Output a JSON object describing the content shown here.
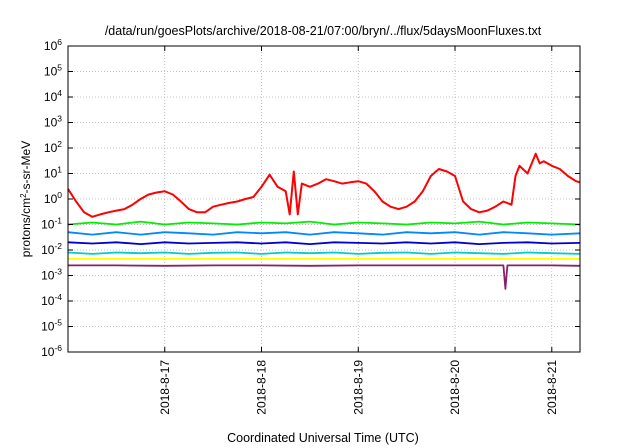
{
  "chart_data": {
    "type": "line",
    "title": "/data/run/goesPlots/archive/2018-08-21/07:00/bryn/../flux/5daysMoonFluxes.txt",
    "xlabel": "Coordinated Universal Time (UTC)",
    "ylabel": "protons/cm2-s-sr-MeV",
    "ylabel_parts": {
      "main": "protons/cm",
      "sup": "2",
      "rest": "-s-sr-MeV"
    },
    "y_scale": "log",
    "ylim": [
      1e-06,
      1000000.0
    ],
    "y_ticks": [
      {
        "value": 1e-06,
        "base": "10",
        "exp": "-6"
      },
      {
        "value": 1e-05,
        "base": "10",
        "exp": "-5"
      },
      {
        "value": 0.0001,
        "base": "10",
        "exp": "-4"
      },
      {
        "value": 0.001,
        "base": "10",
        "exp": "-3"
      },
      {
        "value": 0.01,
        "base": "10",
        "exp": "-2"
      },
      {
        "value": 0.1,
        "base": "10",
        "exp": "-1"
      },
      {
        "value": 1.0,
        "base": "10",
        "exp": "0"
      },
      {
        "value": 10.0,
        "base": "10",
        "exp": "1"
      },
      {
        "value": 100.0,
        "base": "10",
        "exp": "2"
      },
      {
        "value": 1000.0,
        "base": "10",
        "exp": "3"
      },
      {
        "value": 10000.0,
        "base": "10",
        "exp": "4"
      },
      {
        "value": 100000.0,
        "base": "10",
        "exp": "5"
      },
      {
        "value": 1000000.0,
        "base": "10",
        "exp": "6"
      }
    ],
    "xlim": [
      "2018-08-16T00:00",
      "2018-08-21T07:00"
    ],
    "x_ticks": [
      {
        "value": "2018-08-17T00:00",
        "label": "2018-8-17"
      },
      {
        "value": "2018-08-18T00:00",
        "label": "2018-8-18"
      },
      {
        "value": "2018-08-19T00:00",
        "label": "2018-8-19"
      },
      {
        "value": "2018-08-20T00:00",
        "label": "2018-8-20"
      },
      {
        "value": "2018-08-21T00:00",
        "label": "2018-8-21"
      }
    ],
    "grid": true,
    "series": [
      {
        "color": "#ff0000",
        "x": [
          "2018-08-16T00:00",
          "2018-08-16T02:00",
          "2018-08-16T04:00",
          "2018-08-16T06:00",
          "2018-08-16T08:00",
          "2018-08-16T10:00",
          "2018-08-16T12:00",
          "2018-08-16T14:00",
          "2018-08-16T16:00",
          "2018-08-16T18:00",
          "2018-08-16T20:00",
          "2018-08-16T22:00",
          "2018-08-17T00:00",
          "2018-08-17T02:00",
          "2018-08-17T04:00",
          "2018-08-17T06:00",
          "2018-08-17T08:00",
          "2018-08-17T10:00",
          "2018-08-17T12:00",
          "2018-08-17T14:00",
          "2018-08-17T16:00",
          "2018-08-17T18:00",
          "2018-08-17T20:00",
          "2018-08-17T22:00",
          "2018-08-18T00:00",
          "2018-08-18T02:00",
          "2018-08-18T04:00",
          "2018-08-18T06:00",
          "2018-08-18T07:00",
          "2018-08-18T08:00",
          "2018-08-18T09:00",
          "2018-08-18T10:00",
          "2018-08-18T12:00",
          "2018-08-18T14:00",
          "2018-08-18T16:00",
          "2018-08-18T18:00",
          "2018-08-18T20:00",
          "2018-08-18T22:00",
          "2018-08-19T00:00",
          "2018-08-19T02:00",
          "2018-08-19T04:00",
          "2018-08-19T06:00",
          "2018-08-19T08:00",
          "2018-08-19T10:00",
          "2018-08-19T12:00",
          "2018-08-19T14:00",
          "2018-08-19T16:00",
          "2018-08-19T18:00",
          "2018-08-19T20:00",
          "2018-08-19T22:00",
          "2018-08-20T00:00",
          "2018-08-20T02:00",
          "2018-08-20T04:00",
          "2018-08-20T06:00",
          "2018-08-20T08:00",
          "2018-08-20T10:00",
          "2018-08-20T12:00",
          "2018-08-20T14:00",
          "2018-08-20T15:00",
          "2018-08-20T16:00",
          "2018-08-20T18:00",
          "2018-08-20T20:00",
          "2018-08-20T21:00",
          "2018-08-20T22:00",
          "2018-08-21T00:00",
          "2018-08-21T02:00",
          "2018-08-21T04:00",
          "2018-08-21T06:00",
          "2018-08-21T07:00"
        ],
        "y": [
          2.5,
          0.8,
          0.3,
          0.2,
          0.25,
          0.3,
          0.35,
          0.4,
          0.6,
          1.0,
          1.5,
          1.8,
          2.0,
          1.5,
          0.8,
          0.4,
          0.3,
          0.3,
          0.5,
          0.6,
          0.7,
          0.8,
          1.0,
          1.2,
          3.0,
          9.0,
          3.0,
          2.0,
          0.25,
          12.0,
          0.25,
          4.0,
          3.0,
          4.0,
          6.0,
          5.0,
          4.0,
          4.5,
          5.0,
          4.0,
          2.0,
          0.8,
          0.5,
          0.4,
          0.5,
          0.8,
          2.0,
          8.0,
          15.0,
          12.0,
          8.0,
          0.8,
          0.4,
          0.3,
          0.35,
          0.5,
          0.8,
          0.6,
          8.0,
          20.0,
          10.0,
          60.0,
          25.0,
          30.0,
          20.0,
          15.0,
          8.0,
          5.0,
          4.5
        ]
      },
      {
        "color": "#00ee00",
        "x": [
          "2018-08-16T00:00",
          "2018-08-16T06:00",
          "2018-08-16T12:00",
          "2018-08-16T18:00",
          "2018-08-17T00:00",
          "2018-08-17T06:00",
          "2018-08-17T12:00",
          "2018-08-17T18:00",
          "2018-08-18T00:00",
          "2018-08-18T06:00",
          "2018-08-18T12:00",
          "2018-08-18T18:00",
          "2018-08-19T00:00",
          "2018-08-19T06:00",
          "2018-08-19T12:00",
          "2018-08-19T18:00",
          "2018-08-20T00:00",
          "2018-08-20T06:00",
          "2018-08-20T12:00",
          "2018-08-20T18:00",
          "2018-08-21T00:00",
          "2018-08-21T07:00"
        ],
        "y": [
          0.1,
          0.12,
          0.1,
          0.13,
          0.1,
          0.12,
          0.11,
          0.1,
          0.12,
          0.11,
          0.13,
          0.1,
          0.12,
          0.11,
          0.1,
          0.12,
          0.11,
          0.13,
          0.1,
          0.12,
          0.11,
          0.1
        ]
      },
      {
        "color": "#0088ff",
        "x": [
          "2018-08-16T00:00",
          "2018-08-16T06:00",
          "2018-08-16T12:00",
          "2018-08-16T18:00",
          "2018-08-17T00:00",
          "2018-08-17T06:00",
          "2018-08-17T12:00",
          "2018-08-17T18:00",
          "2018-08-18T00:00",
          "2018-08-18T06:00",
          "2018-08-18T12:00",
          "2018-08-18T18:00",
          "2018-08-19T00:00",
          "2018-08-19T06:00",
          "2018-08-19T12:00",
          "2018-08-19T18:00",
          "2018-08-20T00:00",
          "2018-08-20T06:00",
          "2018-08-20T12:00",
          "2018-08-20T18:00",
          "2018-08-21T00:00",
          "2018-08-21T07:00"
        ],
        "y": [
          0.05,
          0.04,
          0.05,
          0.04,
          0.05,
          0.045,
          0.04,
          0.05,
          0.045,
          0.05,
          0.04,
          0.05,
          0.045,
          0.04,
          0.05,
          0.045,
          0.05,
          0.04,
          0.05,
          0.045,
          0.04,
          0.045
        ]
      },
      {
        "color": "#0000cc",
        "x": [
          "2018-08-16T00:00",
          "2018-08-16T06:00",
          "2018-08-16T12:00",
          "2018-08-16T18:00",
          "2018-08-17T00:00",
          "2018-08-17T06:00",
          "2018-08-17T12:00",
          "2018-08-17T18:00",
          "2018-08-18T00:00",
          "2018-08-18T06:00",
          "2018-08-18T12:00",
          "2018-08-18T18:00",
          "2018-08-19T00:00",
          "2018-08-19T06:00",
          "2018-08-19T12:00",
          "2018-08-19T18:00",
          "2018-08-20T00:00",
          "2018-08-20T06:00",
          "2018-08-20T12:00",
          "2018-08-20T18:00",
          "2018-08-21T00:00",
          "2018-08-21T07:00"
        ],
        "y": [
          0.02,
          0.018,
          0.02,
          0.017,
          0.02,
          0.018,
          0.019,
          0.02,
          0.018,
          0.02,
          0.017,
          0.02,
          0.019,
          0.018,
          0.02,
          0.018,
          0.02,
          0.017,
          0.019,
          0.02,
          0.018,
          0.019
        ]
      },
      {
        "color": "#00cccc",
        "x": [
          "2018-08-16T00:00",
          "2018-08-16T06:00",
          "2018-08-16T12:00",
          "2018-08-16T18:00",
          "2018-08-17T00:00",
          "2018-08-17T06:00",
          "2018-08-17T12:00",
          "2018-08-17T18:00",
          "2018-08-18T00:00",
          "2018-08-18T06:00",
          "2018-08-18T12:00",
          "2018-08-18T18:00",
          "2018-08-19T00:00",
          "2018-08-19T06:00",
          "2018-08-19T12:00",
          "2018-08-19T18:00",
          "2018-08-20T00:00",
          "2018-08-20T06:00",
          "2018-08-20T12:00",
          "2018-08-20T18:00",
          "2018-08-21T00:00",
          "2018-08-21T07:00"
        ],
        "y": [
          0.008,
          0.007,
          0.008,
          0.0075,
          0.008,
          0.007,
          0.0078,
          0.008,
          0.007,
          0.008,
          0.0075,
          0.008,
          0.007,
          0.0078,
          0.008,
          0.007,
          0.008,
          0.0075,
          0.007,
          0.008,
          0.0075,
          0.007
        ]
      },
      {
        "color": "#ffff00",
        "x": [
          "2018-08-16T00:00",
          "2018-08-17T00:00",
          "2018-08-18T00:00",
          "2018-08-19T00:00",
          "2018-08-20T00:00",
          "2018-08-21T00:00",
          "2018-08-21T07:00"
        ],
        "y": [
          0.0045,
          0.0045,
          0.0045,
          0.0045,
          0.0045,
          0.0045,
          0.0045
        ]
      },
      {
        "color": "#882266",
        "x": [
          "2018-08-16T00:00",
          "2018-08-16T12:00",
          "2018-08-17T00:00",
          "2018-08-17T12:00",
          "2018-08-18T00:00",
          "2018-08-18T12:00",
          "2018-08-19T00:00",
          "2018-08-19T12:00",
          "2018-08-20T00:00",
          "2018-08-20T12:00",
          "2018-08-20T12:30",
          "2018-08-20T13:00",
          "2018-08-21T00:00",
          "2018-08-21T07:00"
        ],
        "y": [
          0.0025,
          0.0025,
          0.0024,
          0.0025,
          0.0025,
          0.0024,
          0.0025,
          0.0025,
          0.0025,
          0.0025,
          0.0003,
          0.0025,
          0.0025,
          0.0024
        ]
      }
    ]
  }
}
